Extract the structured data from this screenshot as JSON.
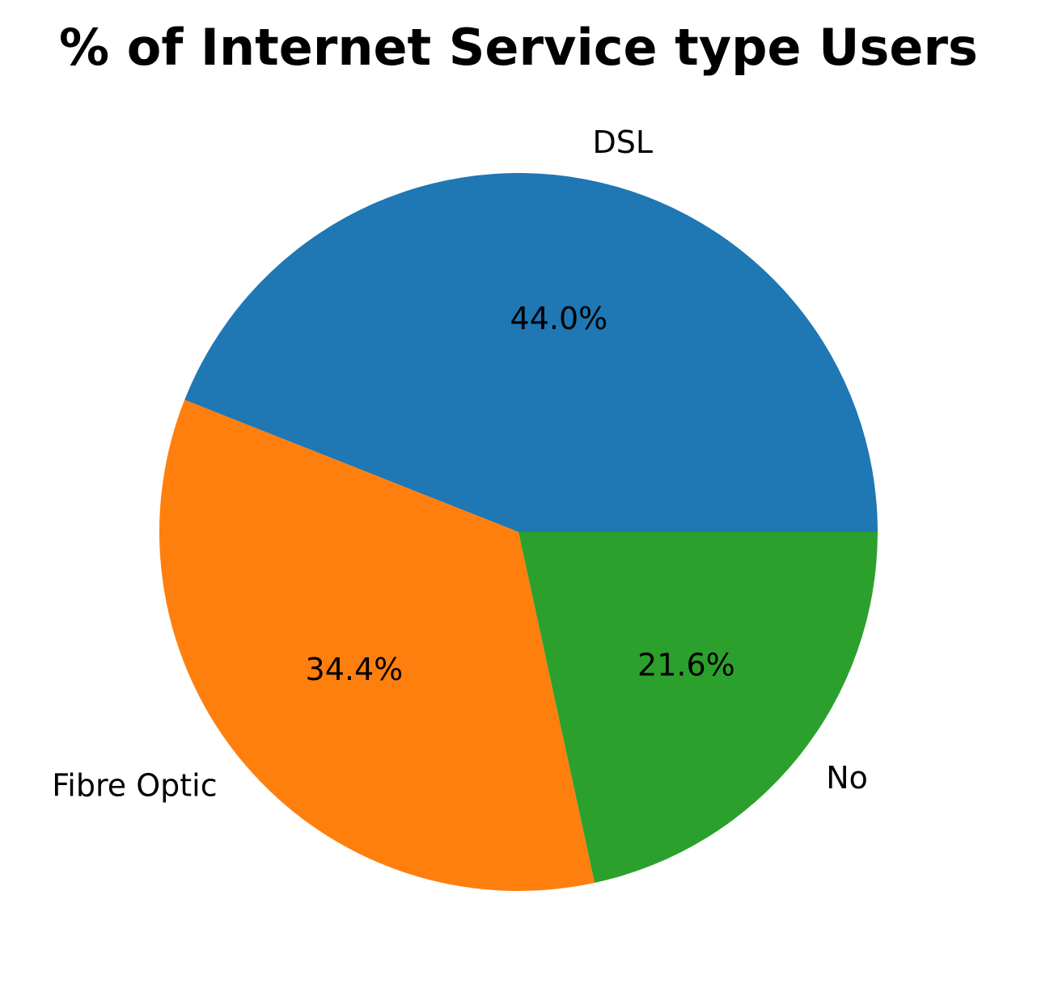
{
  "chart_data": {
    "type": "pie",
    "title": "% of Internet Service type Users",
    "categories": [
      "DSL",
      "Fibre Optic",
      "No"
    ],
    "values": [
      44.0,
      34.4,
      21.6
    ],
    "value_labels": [
      "44.0%",
      "34.4%",
      "21.6%"
    ],
    "colors": [
      "#1f77b4",
      "#ff7f0e",
      "#2ca02c"
    ],
    "start_angle_deg": 0,
    "direction": "counterclockwise",
    "legend": "none"
  }
}
